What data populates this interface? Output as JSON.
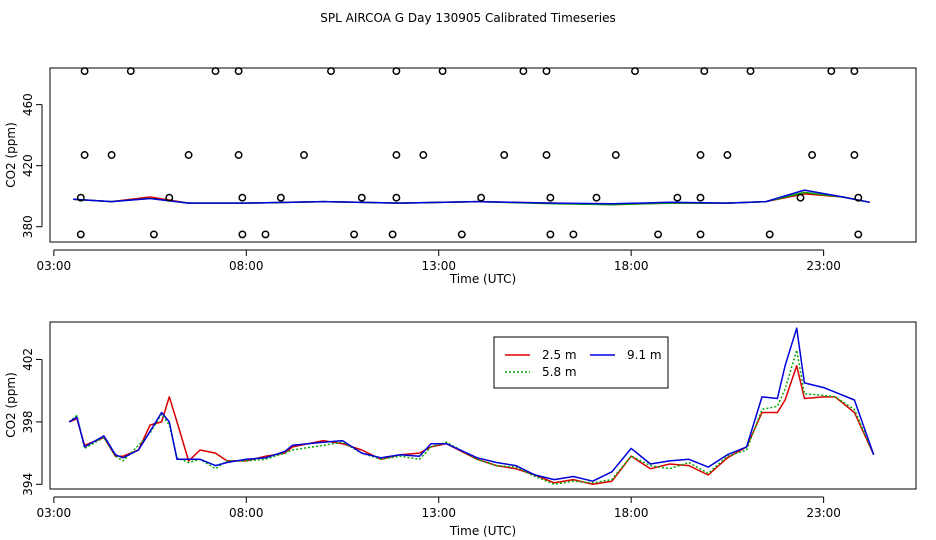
{
  "title": "SPL AIRCOA G  Day 130905  Calibrated Timeseries",
  "chart_data": [
    {
      "type": "line",
      "id": "top",
      "xlabel": "Time (UTC)",
      "ylabel": "CO2 (ppm)",
      "xlim": [
        2.9,
        25.4
      ],
      "ylim": [
        370,
        484
      ],
      "xticks": [
        3,
        8,
        13,
        18,
        23
      ],
      "xtick_labels": [
        "03:00",
        "08:00",
        "13:00",
        "18:00",
        "23:00"
      ],
      "yticks": [
        380,
        420,
        460
      ],
      "ytick_labels": [
        "380",
        "420",
        "460"
      ],
      "series": [
        {
          "name": "2.5 m",
          "color": "#dd0000",
          "x": [
            3.5,
            4.5,
            5.5,
            6.5,
            8,
            10,
            12,
            14,
            16,
            17.5,
            19,
            20.5,
            21.5,
            22.5,
            23.5,
            24.2
          ],
          "y": [
            398,
            396.5,
            399.5,
            395.5,
            395.5,
            396.5,
            395.5,
            396.5,
            395.5,
            394.5,
            395.5,
            395.5,
            396.5,
            401.5,
            399.5,
            396
          ]
        },
        {
          "name": "5.8 m",
          "color": "#00aa00",
          "x": [
            3.5,
            4.5,
            5.5,
            6.5,
            8,
            10,
            12,
            14,
            16,
            17.5,
            19,
            20.5,
            21.5,
            22.5,
            23.5,
            24.2
          ],
          "y": [
            398,
            396.5,
            398.5,
            395.5,
            395.5,
            396.5,
            395.5,
            396.5,
            395,
            394.5,
            395.5,
            395.5,
            396.5,
            402.5,
            399.5,
            396
          ]
        },
        {
          "name": "9.1 m",
          "color": "#0000dd",
          "x": [
            3.5,
            4.5,
            5.5,
            6.5,
            8,
            10,
            12,
            14,
            16,
            17.5,
            19,
            20.5,
            21.5,
            22.5,
            23.5,
            24.2
          ],
          "y": [
            398,
            396.5,
            398.5,
            395.5,
            395.5,
            396.5,
            395.5,
            396.5,
            395.5,
            395,
            396,
            395.5,
            396.5,
            404,
            399.5,
            396
          ]
        }
      ],
      "points": {
        "name": "calibration markers",
        "x": [
          3.8,
          5.0,
          7.2,
          7.8,
          10.2,
          11.9,
          13.1,
          15.2,
          15.8,
          18.1,
          19.9,
          21.1,
          23.2,
          23.8,
          3.8,
          4.5,
          6.5,
          7.8,
          9.5,
          11.9,
          12.6,
          14.7,
          15.8,
          17.6,
          19.8,
          20.5,
          22.7,
          23.8,
          3.7,
          6.0,
          7.9,
          8.9,
          11.0,
          11.9,
          14.1,
          15.9,
          17.1,
          19.2,
          19.8,
          22.4,
          23.9,
          3.7,
          5.6,
          7.9,
          8.5,
          10.8,
          11.8,
          13.6,
          15.9,
          16.5,
          18.7,
          19.8,
          21.6,
          23.9
        ],
        "y": [
          482,
          482,
          482,
          482,
          482,
          482,
          482,
          482,
          482,
          482,
          482,
          482,
          482,
          482,
          427,
          427,
          427,
          427,
          427,
          427,
          427,
          427,
          427,
          427,
          427,
          427,
          427,
          427,
          399,
          399,
          399,
          399,
          399,
          399,
          399,
          399,
          399,
          399,
          399,
          399,
          399,
          375,
          375,
          375,
          375,
          375,
          375,
          375,
          375,
          375,
          375,
          375,
          375,
          375
        ]
      }
    },
    {
      "type": "line",
      "id": "bottom",
      "xlabel": "Time (UTC)",
      "ylabel": "CO2 (ppm)",
      "xlim": [
        2.9,
        25.4
      ],
      "ylim": [
        393.7,
        404.4
      ],
      "xticks": [
        3,
        8,
        13,
        18,
        23
      ],
      "xtick_labels": [
        "03:00",
        "08:00",
        "13:00",
        "18:00",
        "23:00"
      ],
      "yticks": [
        394,
        398,
        402
      ],
      "ytick_labels": [
        "394",
        "398",
        "402"
      ],
      "legend": {
        "position": "top-center",
        "entries": [
          "2.5 m",
          "9.1 m",
          "5.8 m"
        ]
      },
      "series": [
        {
          "name": "2.5 m",
          "color": "#dd0000",
          "dash": "",
          "x": [
            3.4,
            3.6,
            3.8,
            4.3,
            4.6,
            4.8,
            5.2,
            5.5,
            5.8,
            6.0,
            6.2,
            6.5,
            6.8,
            7.2,
            7.5,
            8.0,
            8.5,
            9.0,
            9.2,
            10.0,
            10.5,
            11.0,
            11.5,
            12.0,
            12.5,
            12.8,
            13.2,
            14.0,
            14.5,
            15.0,
            15.5,
            16.0,
            16.5,
            17.0,
            17.5,
            18.0,
            18.5,
            19.0,
            19.5,
            20.0,
            20.5,
            21.0,
            21.4,
            21.8,
            22.0,
            22.3,
            22.5,
            23.0,
            23.3,
            23.8,
            24.3
          ],
          "y": [
            398,
            398.2,
            396.5,
            397,
            395.8,
            395.8,
            396.2,
            397.8,
            398,
            399.6,
            398,
            395.5,
            396.2,
            396,
            395.5,
            395.5,
            395.8,
            396,
            396.4,
            396.8,
            396.6,
            396.2,
            395.6,
            395.9,
            396,
            396.4,
            396.6,
            395.6,
            395.2,
            395,
            394.6,
            394.1,
            394.3,
            394,
            394.2,
            395.8,
            395,
            395.3,
            395.2,
            394.6,
            395.7,
            396.4,
            398.6,
            398.6,
            399.4,
            401.6,
            399.5,
            399.6,
            399.6,
            398.6,
            395.9
          ]
        },
        {
          "name": "5.8 m",
          "color": "#00aa00",
          "dash": "2,2",
          "x": [
            3.4,
            3.6,
            3.8,
            4.3,
            4.6,
            4.8,
            5.2,
            5.5,
            5.8,
            6.0,
            6.2,
            6.5,
            6.8,
            7.2,
            7.5,
            8.0,
            8.5,
            9.0,
            9.2,
            10.0,
            10.5,
            11.0,
            11.5,
            12.0,
            12.5,
            12.8,
            13.2,
            14.0,
            14.5,
            15.0,
            15.5,
            16.0,
            16.5,
            17.0,
            17.5,
            18.0,
            18.5,
            19.0,
            19.5,
            20.0,
            20.5,
            21.0,
            21.4,
            21.8,
            22.0,
            22.3,
            22.5,
            23.0,
            23.3,
            23.8,
            24.3
          ],
          "y": [
            398,
            398.4,
            396.3,
            397,
            395.8,
            395.5,
            396.5,
            397.3,
            398.5,
            397.8,
            395.7,
            395.4,
            395.6,
            395,
            395.5,
            395.5,
            395.6,
            396,
            396.2,
            396.5,
            396.7,
            396,
            395.6,
            395.8,
            395.6,
            396.4,
            396.7,
            395.6,
            395.2,
            395.1,
            394.5,
            394,
            394.2,
            394.1,
            394.3,
            395.8,
            395.2,
            395,
            395.4,
            394.7,
            395.8,
            396.2,
            398.8,
            399,
            400.1,
            402.6,
            399.8,
            399.7,
            399.6,
            398.8,
            395.9
          ]
        },
        {
          "name": "9.1 m",
          "color": "#0000dd",
          "dash": "",
          "x": [
            3.4,
            3.6,
            3.8,
            4.3,
            4.6,
            4.8,
            5.2,
            5.5,
            5.8,
            6.0,
            6.2,
            6.5,
            6.8,
            7.2,
            7.5,
            8.0,
            8.5,
            9.0,
            9.2,
            10.0,
            10.5,
            11.0,
            11.5,
            12.0,
            12.5,
            12.8,
            13.2,
            14.0,
            14.5,
            15.0,
            15.5,
            16.0,
            16.5,
            17.0,
            17.5,
            18.0,
            18.5,
            19.0,
            19.5,
            20.0,
            20.5,
            21.0,
            21.4,
            21.8,
            22.0,
            22.3,
            22.5,
            23.0,
            23.3,
            23.8,
            24.3
          ],
          "y": [
            398,
            398.3,
            396.4,
            397.1,
            395.9,
            395.7,
            396.2,
            397.4,
            398.6,
            398,
            395.6,
            395.6,
            395.6,
            395.2,
            395.4,
            395.6,
            395.7,
            396.1,
            396.5,
            396.7,
            396.8,
            396,
            395.7,
            395.9,
            395.8,
            396.6,
            396.6,
            395.7,
            395.4,
            395.2,
            394.6,
            394.3,
            394.5,
            394.2,
            394.8,
            396.3,
            395.3,
            395.5,
            395.6,
            395.1,
            395.9,
            396.4,
            399.6,
            399.5,
            401.6,
            404,
            400.5,
            400.2,
            399.9,
            399.4,
            395.9
          ]
        }
      ]
    }
  ]
}
